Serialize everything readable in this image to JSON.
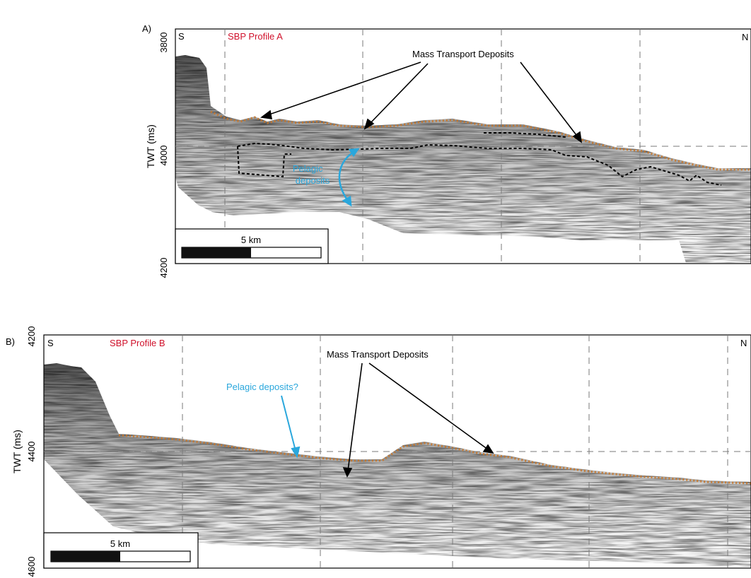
{
  "colors": {
    "annotation_black": "#000000",
    "profile_title_red": "#d0112b",
    "pelagic_blue": "#2aa7dc",
    "reflector_orange": "#c8772a",
    "seismic_grey": "#4a4a4a",
    "dashed_grid": "#7a7a7a"
  },
  "panels": [
    {
      "panel_label": "A)",
      "profile_title": "SBP Profile A",
      "left_end_label": "S",
      "right_end_label": "N",
      "y_axis_label": "TWT (ms)",
      "y_ticks": [
        "3800",
        "4000",
        "4200"
      ],
      "y_range": [
        3800,
        4200
      ],
      "annotations": {
        "mtd_label": "Mass Transport Deposits",
        "pelagic_label_line1": "Pelagic",
        "pelagic_label_line2": "deposits"
      },
      "scale_bar_label": "5 km"
    },
    {
      "panel_label": "B)",
      "profile_title": "SBP Profile B",
      "left_end_label": "S",
      "right_end_label": "N",
      "y_axis_label": "TWT (ms)",
      "y_ticks": [
        "4200",
        "4400",
        "4600"
      ],
      "y_range": [
        4200,
        4600
      ],
      "annotations": {
        "mtd_label": "Mass Transport Deposits",
        "pelagic_label": "Pelagic deposits?"
      },
      "scale_bar_label": "5 km"
    }
  ]
}
